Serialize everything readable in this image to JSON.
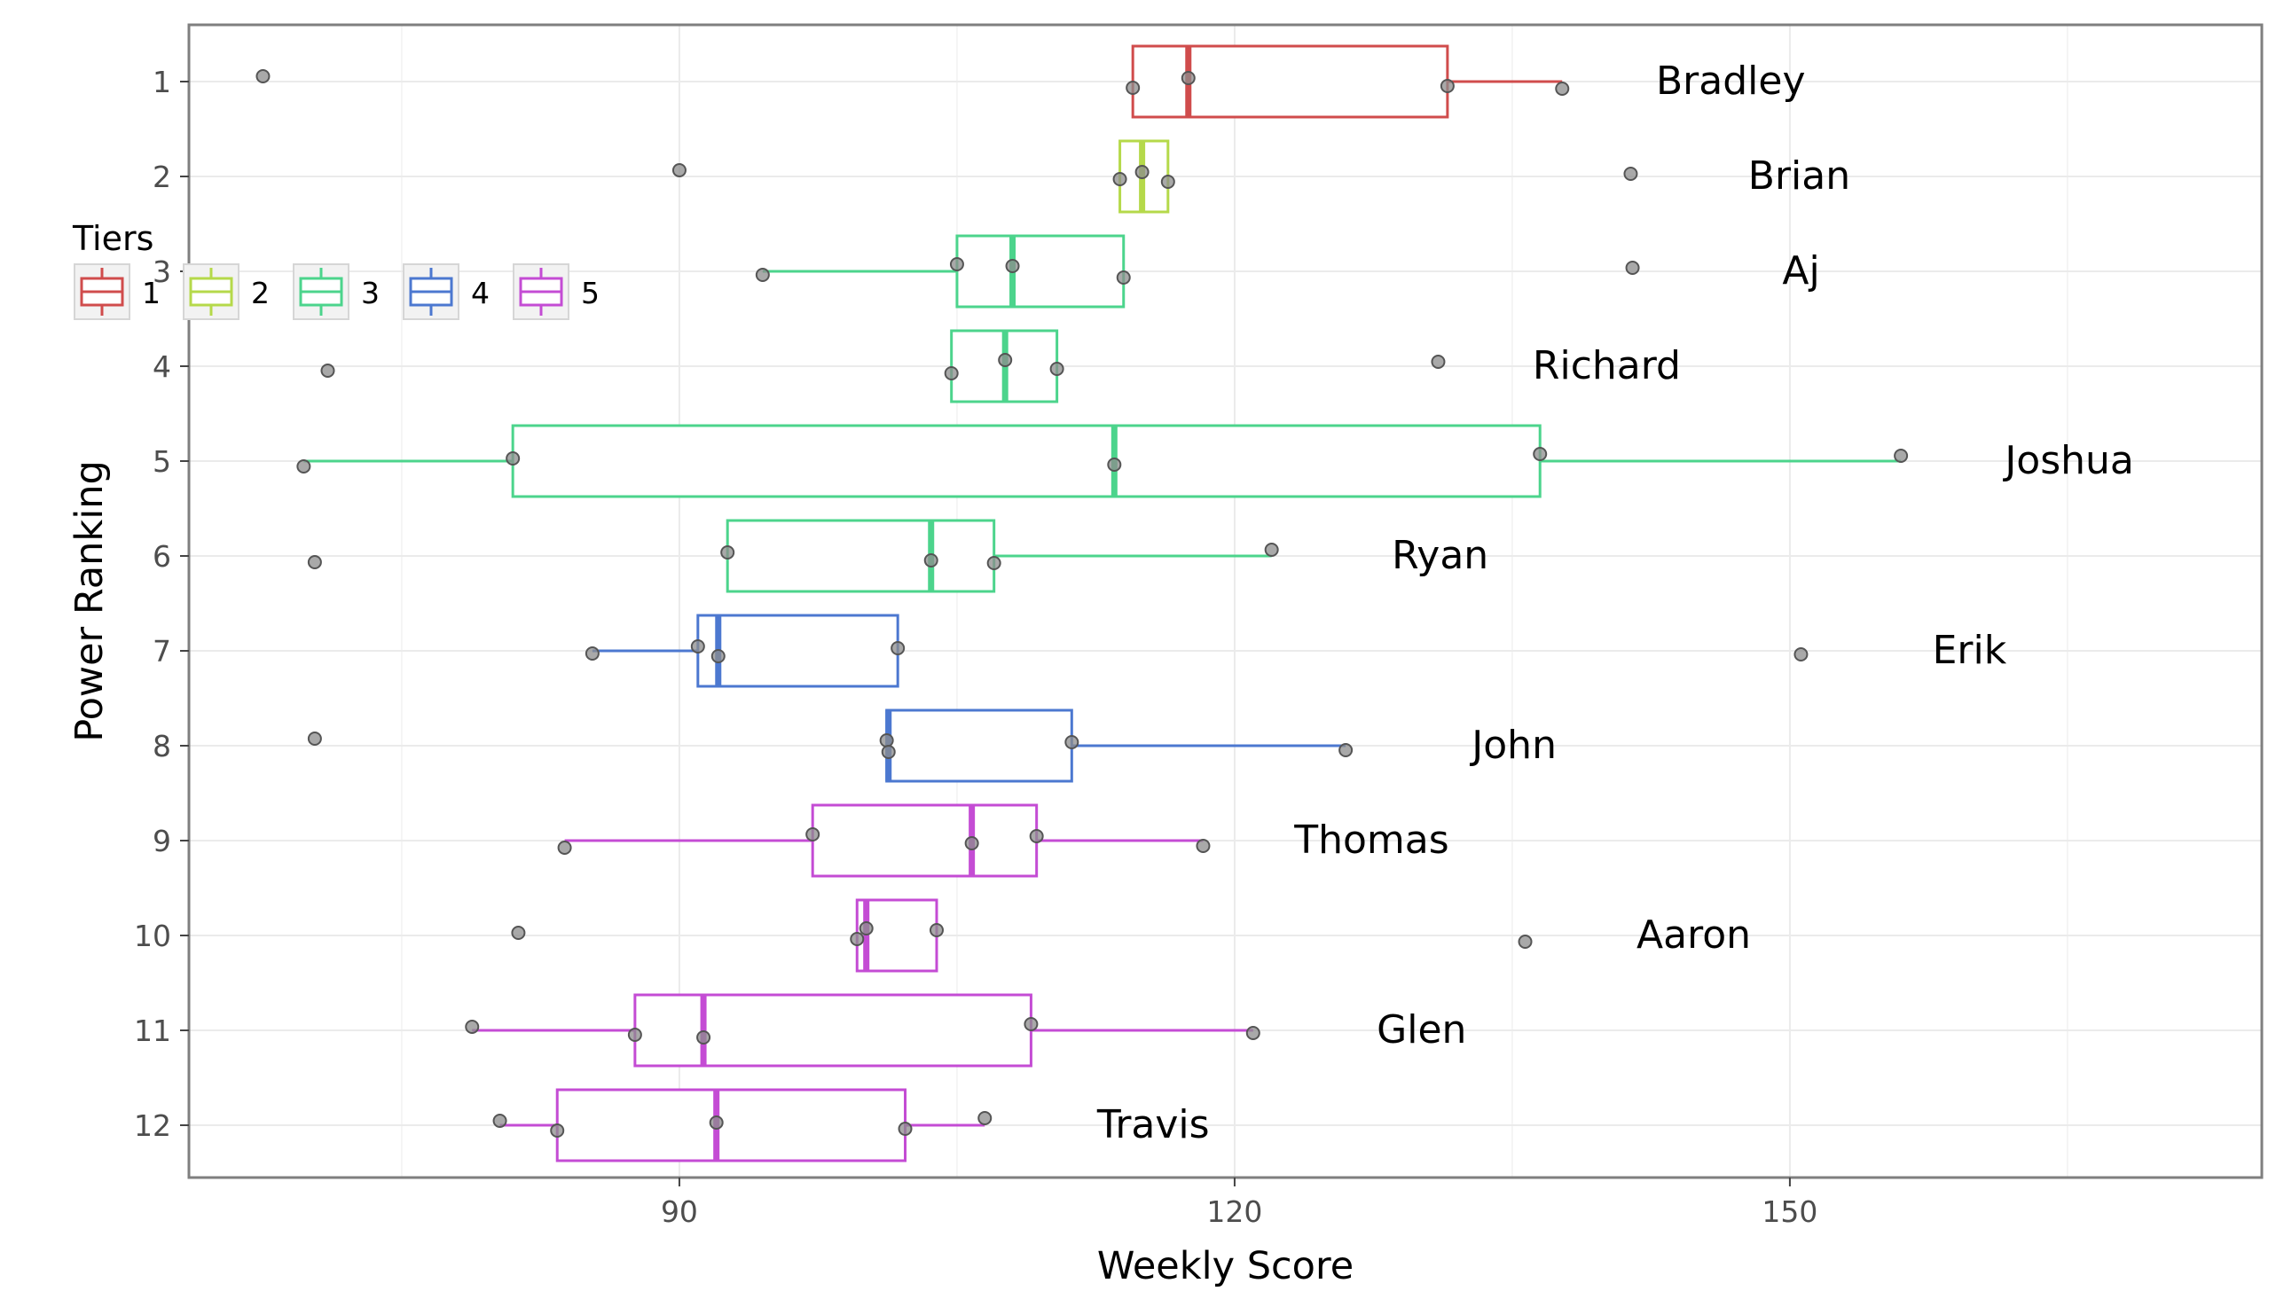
{
  "chart_data": {
    "type": "boxplot",
    "title": "",
    "xlabel": "Weekly Score",
    "ylabel": "Power Ranking",
    "xlim": [
      63.5,
      175.5
    ],
    "xticks": [
      90,
      120,
      150
    ],
    "grid": true,
    "legend": {
      "title": "Tiers",
      "position": "top-left",
      "entries": [
        {
          "label": "1",
          "color": "#D04C4C"
        },
        {
          "label": "2",
          "color": "#B5D94A"
        },
        {
          "label": "3",
          "color": "#4CD48C"
        },
        {
          "label": "4",
          "color": "#4C78D0"
        },
        {
          "label": "5",
          "color": "#C44CD4"
        }
      ]
    },
    "categories": [
      "1",
      "2",
      "3",
      "4",
      "5",
      "6",
      "7",
      "8",
      "9",
      "10",
      "11",
      "12"
    ],
    "series": [
      {
        "rank": "1",
        "name": "Bradley",
        "tier": 1,
        "q1": 114.5,
        "median": 117.5,
        "q3": 131.5,
        "whisker_low": 114.5,
        "whisker_high": 137.7,
        "points": [
          67.5,
          114.5,
          117.5,
          131.5,
          137.7
        ]
      },
      {
        "rank": "2",
        "name": "Brian",
        "tier": 2,
        "q1": 113.8,
        "median": 115.0,
        "q3": 116.4,
        "whisker_low": 113.8,
        "whisker_high": 116.4,
        "points": [
          90.0,
          113.8,
          115.0,
          116.4,
          141.4
        ]
      },
      {
        "rank": "3",
        "name": "Aj",
        "tier": 3,
        "q1": 105.0,
        "median": 108.0,
        "q3": 114.0,
        "whisker_low": 94.5,
        "whisker_high": 114.0,
        "points": [
          94.5,
          105.0,
          108.0,
          114.0,
          141.5
        ]
      },
      {
        "rank": "4",
        "name": "Richard",
        "tier": 3,
        "q1": 104.7,
        "median": 107.6,
        "q3": 110.4,
        "whisker_low": 104.7,
        "whisker_high": 110.4,
        "points": [
          71.0,
          104.7,
          107.6,
          110.4,
          131.0
        ]
      },
      {
        "rank": "5",
        "name": "Joshua",
        "tier": 3,
        "q1": 81.0,
        "median": 113.5,
        "q3": 136.5,
        "whisker_low": 69.7,
        "whisker_high": 156.0,
        "points": [
          69.7,
          81.0,
          113.5,
          136.5,
          156.0
        ]
      },
      {
        "rank": "6",
        "name": "Ryan",
        "tier": 3,
        "q1": 92.6,
        "median": 103.6,
        "q3": 107.0,
        "whisker_low": 92.6,
        "whisker_high": 122.0,
        "points": [
          70.3,
          92.6,
          103.6,
          107.0,
          122.0
        ]
      },
      {
        "rank": "7",
        "name": "Erik",
        "tier": 4,
        "q1": 91.0,
        "median": 92.1,
        "q3": 101.8,
        "whisker_low": 85.3,
        "whisker_high": 101.8,
        "points": [
          85.3,
          91.0,
          92.1,
          101.8,
          150.6
        ]
      },
      {
        "rank": "8",
        "name": "John",
        "tier": 4,
        "q1": 101.2,
        "median": 101.3,
        "q3": 111.2,
        "whisker_low": 101.2,
        "whisker_high": 126.0,
        "points": [
          70.3,
          101.2,
          101.3,
          111.2,
          126.0
        ]
      },
      {
        "rank": "9",
        "name": "Thomas",
        "tier": 5,
        "q1": 97.2,
        "median": 105.8,
        "q3": 109.3,
        "whisker_low": 83.8,
        "whisker_high": 118.3,
        "points": [
          83.8,
          97.2,
          105.8,
          109.3,
          118.3
        ]
      },
      {
        "rank": "10",
        "name": "Aaron",
        "tier": 5,
        "q1": 99.6,
        "median": 100.1,
        "q3": 103.9,
        "whisker_low": 99.6,
        "whisker_high": 103.9,
        "points": [
          81.3,
          99.6,
          100.1,
          103.9,
          135.7
        ]
      },
      {
        "rank": "11",
        "name": "Glen",
        "tier": 5,
        "q1": 87.6,
        "median": 91.3,
        "q3": 109.0,
        "whisker_low": 78.8,
        "whisker_high": 121.0,
        "points": [
          78.8,
          87.6,
          91.3,
          109.0,
          121.0
        ]
      },
      {
        "rank": "12",
        "name": "Travis",
        "tier": 5,
        "q1": 83.4,
        "median": 92.0,
        "q3": 102.2,
        "whisker_low": 80.3,
        "whisker_high": 106.5,
        "points": [
          80.3,
          83.4,
          92.0,
          102.2,
          106.5
        ]
      }
    ]
  }
}
